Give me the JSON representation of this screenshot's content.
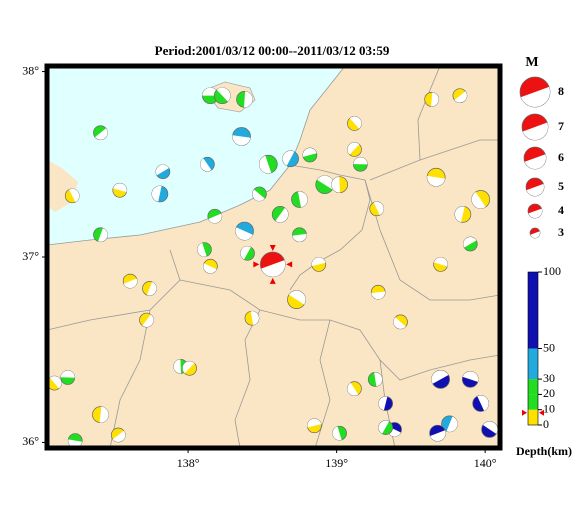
{
  "title": "Period:2001/03/12 00:00--2011/03/12 03:59",
  "map": {
    "xlim": [
      137.05,
      140.1
    ],
    "ylim": [
      35.97,
      38.03
    ],
    "xticks": [
      {
        "value": 138,
        "label": "138°"
      },
      {
        "value": 139,
        "label": "139°"
      },
      {
        "value": 140,
        "label": "140°"
      }
    ],
    "yticks": [
      {
        "value": 38,
        "label": "38°"
      },
      {
        "value": 37,
        "label": "37°"
      },
      {
        "value": 36,
        "label": "36°"
      }
    ],
    "events": {
      "lon": [
        138.15,
        138.23,
        138.38,
        137.41,
        138.36,
        138.13,
        137.81,
        137.83,
        137.54,
        137.22,
        137.41,
        138.18,
        138.38,
        138.54,
        138.69,
        138.82,
        138.92,
        138.75,
        138.62,
        138.75,
        138.48,
        139.02,
        139.12,
        139.16,
        139.12,
        139.64,
        139.83,
        139.67,
        139.97,
        139.85,
        139.9,
        139.7,
        139.27,
        137.74,
        137.61,
        138.15,
        138.11,
        138.4,
        138.88,
        138.73,
        138.43,
        137.72,
        139.28,
        139.43,
        137.95,
        138.01,
        137.19,
        137.1,
        137.41,
        137.53,
        137.24,
        139.12,
        139.33,
        139.7,
        139.9,
        139.97,
        139.76,
        139.68,
        139.39,
        139.02,
        139.33,
        138.85,
        140.03,
        139.26
      ],
      "lat": [
        37.87,
        37.87,
        37.85,
        37.67,
        37.65,
        37.5,
        37.34,
        37.46,
        37.36,
        37.33,
        37.12,
        37.22,
        37.14,
        37.5,
        37.53,
        37.55,
        37.39,
        37.31,
        37.23,
        37.12,
        37.34,
        37.39,
        37.58,
        37.5,
        37.72,
        37.85,
        37.87,
        37.43,
        37.31,
        37.23,
        37.07,
        36.96,
        37.26,
        36.83,
        36.87,
        36.95,
        37.04,
        37.02,
        36.96,
        36.77,
        36.67,
        36.66,
        36.81,
        36.65,
        36.41,
        36.4,
        36.35,
        36.32,
        36.15,
        36.04,
        36.01,
        36.29,
        36.21,
        36.34,
        36.34,
        36.21,
        36.1,
        36.05,
        36.07,
        36.05,
        36.08,
        36.09,
        36.07,
        36.34
      ],
      "depth": [
        15,
        15,
        15,
        15,
        35,
        35,
        35,
        35,
        5,
        5,
        15,
        15,
        35,
        15,
        35,
        15,
        15,
        15,
        15,
        15,
        15,
        5,
        5,
        15,
        5,
        5,
        5,
        5,
        5,
        5,
        15,
        5,
        5,
        5,
        5,
        5,
        15,
        15,
        5,
        5,
        5,
        5,
        5,
        5,
        15,
        5,
        15,
        5,
        5,
        5,
        15,
        5,
        70,
        70,
        70,
        70,
        35,
        70,
        70,
        15,
        15,
        5,
        70,
        15
      ],
      "mag": [
        4.5,
        4.5,
        4.5,
        4,
        5,
        4,
        4.5,
        4,
        4,
        4,
        4,
        4,
        5,
        5,
        4.5,
        4,
        5,
        4.5,
        4.5,
        4,
        4,
        4.5,
        4,
        4,
        4,
        4,
        4,
        5,
        5,
        4.5,
        4,
        4,
        4,
        4,
        4,
        4,
        4,
        4,
        4,
        5,
        4,
        4,
        4,
        4,
        4,
        4,
        4,
        4,
        4.5,
        4,
        4,
        4,
        4,
        5,
        4.5,
        4.5,
        4.5,
        4.5,
        4,
        4,
        4,
        4,
        4.5,
        4
      ]
    },
    "mainshock": {
      "lon": 138.57,
      "lat": 36.96,
      "depth": 8,
      "mag": 6.7
    }
  },
  "legend": {
    "title": "M",
    "magnitudes": [
      8,
      7,
      6,
      5,
      4,
      3
    ]
  },
  "depth_scale": {
    "label": "Depth(km)",
    "ylim": [
      0,
      100
    ],
    "ticks": [
      0,
      10,
      20,
      30,
      50,
      100
    ],
    "band_colors": [
      "#ffe000",
      "#22dd22",
      "#22dd22",
      "#22aadd",
      "#1010b0"
    ]
  }
}
